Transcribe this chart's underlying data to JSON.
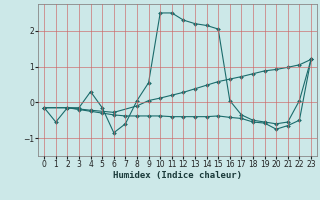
{
  "xlabel": "Humidex (Indice chaleur)",
  "bg_color": "#cce8e8",
  "grid_color": "#cc6666",
  "line_color": "#1a6b6b",
  "xlim": [
    -0.5,
    23.5
  ],
  "ylim": [
    -1.5,
    2.75
  ],
  "yticks": [
    -1,
    0,
    1,
    2
  ],
  "xticks": [
    0,
    1,
    2,
    3,
    4,
    5,
    6,
    7,
    8,
    9,
    10,
    11,
    12,
    13,
    14,
    15,
    16,
    17,
    18,
    19,
    20,
    21,
    22,
    23
  ],
  "curve1_x": [
    0,
    1,
    2,
    3,
    4,
    5,
    6,
    7,
    8,
    9,
    10,
    11,
    12,
    13,
    14,
    15,
    16,
    17,
    18,
    19,
    20,
    21,
    22,
    23
  ],
  "curve1_y": [
    -0.15,
    -0.55,
    -0.15,
    -0.15,
    0.3,
    -0.15,
    -0.85,
    -0.6,
    0.05,
    0.55,
    2.5,
    2.5,
    2.3,
    2.2,
    2.15,
    2.05,
    0.05,
    -0.35,
    -0.5,
    -0.55,
    -0.6,
    -0.55,
    0.05,
    1.2
  ],
  "curve2_x": [
    0,
    2,
    3,
    4,
    5,
    6,
    7,
    8,
    9,
    10,
    11,
    12,
    13,
    14,
    15,
    16,
    17,
    18,
    19,
    20,
    21,
    22,
    23
  ],
  "curve2_y": [
    -0.15,
    -0.15,
    -0.2,
    -0.25,
    -0.3,
    -0.35,
    -0.38,
    -0.38,
    -0.38,
    -0.38,
    -0.4,
    -0.4,
    -0.4,
    -0.4,
    -0.38,
    -0.42,
    -0.45,
    -0.55,
    -0.58,
    -0.75,
    -0.65,
    -0.5,
    1.2
  ],
  "curve3_x": [
    0,
    2,
    4,
    6,
    8,
    9,
    10,
    11,
    12,
    13,
    14,
    15,
    16,
    17,
    18,
    19,
    20,
    21,
    22,
    23
  ],
  "curve3_y": [
    -0.15,
    -0.15,
    -0.22,
    -0.28,
    -0.1,
    0.05,
    0.12,
    0.2,
    0.28,
    0.38,
    0.48,
    0.58,
    0.65,
    0.72,
    0.8,
    0.88,
    0.92,
    0.98,
    1.05,
    1.2
  ]
}
